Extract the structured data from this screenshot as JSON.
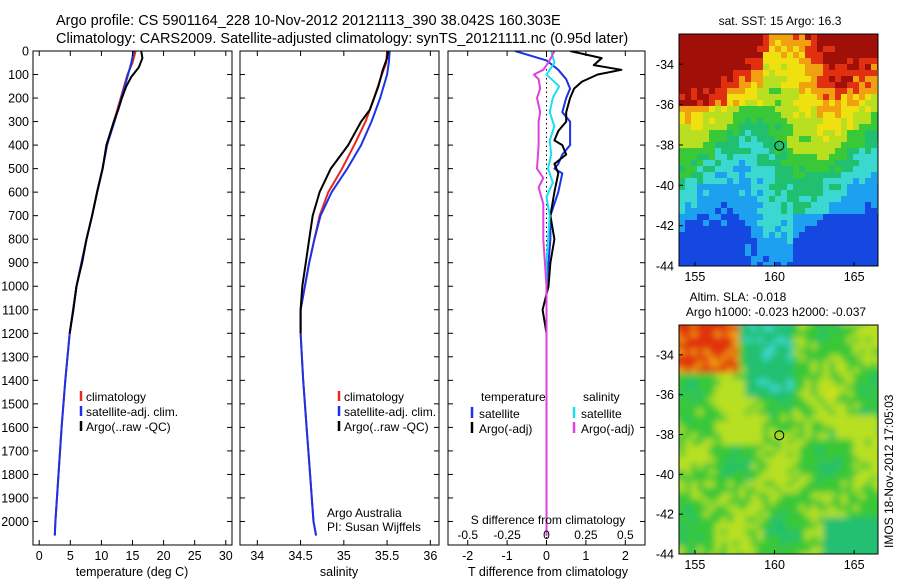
{
  "titles": {
    "line1": "Argo profile: CS 5901164_228 10-Nov-2012 20121113_390 38.042S 160.303E",
    "line2": "Climatology: CARS2009. Satellite-adjusted climatology: synTS_20121111.nc (0.95d later)"
  },
  "credit": {
    "line1": "Argo Australia",
    "line2": "PI: Susan Wijffels"
  },
  "side_label": "IMOS 18-Nov-2012 17:05:03",
  "colors": {
    "climatology": "#e8281e",
    "satellite": "#1a33e6",
    "argo": "#000000",
    "satellite_s": "#18e0f0",
    "argo_s": "#e040e0"
  },
  "chart_data": [
    {
      "type": "line",
      "panel": "temperature",
      "xlabel": "temperature (deg C)",
      "xlim": [
        -1,
        31
      ],
      "xticks": [
        0,
        5,
        10,
        15,
        20,
        25,
        30
      ],
      "ylim": [
        0,
        2100
      ],
      "yreversed": true,
      "yticks": [
        0,
        100,
        200,
        300,
        400,
        500,
        600,
        700,
        800,
        900,
        1000,
        1100,
        1200,
        1300,
        1400,
        1500,
        1600,
        1700,
        1800,
        1900,
        2000
      ],
      "legend": [
        "climatology",
        "satellite-adj. clim.",
        "Argo(..raw -QC)"
      ],
      "series": [
        {
          "name": "climatology",
          "color": "#e8281e",
          "y": [
            0,
            50,
            100,
            200,
            300,
            400,
            500,
            600,
            700,
            800,
            900,
            1000,
            1200,
            1400,
            1600,
            1800,
            2000,
            2060
          ],
          "x": [
            15.5,
            15.0,
            14.2,
            13.1,
            12.0,
            10.9,
            10.2,
            9.3,
            8.5,
            7.6,
            6.8,
            6.0,
            4.9,
            4.2,
            3.6,
            3.1,
            2.6,
            2.5
          ]
        },
        {
          "name": "satellite-adj. clim.",
          "color": "#1a33e6",
          "y": [
            0,
            50,
            100,
            200,
            300,
            400,
            500,
            600,
            700,
            800,
            900,
            1000,
            1200,
            1400,
            1600,
            1800,
            2000,
            2060
          ],
          "x": [
            15.2,
            14.8,
            14.3,
            13.2,
            12.1,
            10.9,
            10.2,
            9.3,
            8.5,
            7.6,
            6.8,
            6.0,
            4.9,
            4.2,
            3.6,
            3.1,
            2.6,
            2.5
          ]
        },
        {
          "name": "Argo(..raw -QC)",
          "color": "#000000",
          "y": [
            0,
            30,
            70,
            110,
            150,
            200,
            250,
            300,
            350,
            400,
            450,
            500,
            600,
            700,
            800,
            900,
            1000,
            1100,
            1200
          ],
          "x": [
            16.4,
            16.6,
            16.0,
            14.8,
            14.0,
            13.3,
            12.7,
            12.0,
            11.4,
            10.8,
            10.5,
            10.2,
            9.3,
            8.5,
            7.6,
            6.9,
            6.0,
            5.5,
            4.9
          ]
        }
      ]
    },
    {
      "type": "line",
      "panel": "salinity",
      "xlabel": "salinity",
      "xlim": [
        33.8,
        36.1
      ],
      "xticks": [
        34,
        34.5,
        35,
        35.5,
        36
      ],
      "xticklabels": [
        "34",
        "34.5",
        "35",
        "35.5",
        "36"
      ],
      "ylim": [
        0,
        2100
      ],
      "yreversed": true,
      "legend": [
        "climatology",
        "satellite-adj. clim.",
        "Argo(..raw -QC)"
      ],
      "series": [
        {
          "name": "climatology",
          "color": "#e8281e",
          "y": [
            0,
            50,
            100,
            200,
            300,
            400,
            500,
            600,
            700,
            800,
            900,
            1000,
            1100,
            1200,
            1400,
            1600,
            1800,
            2000,
            2060
          ],
          "x": [
            35.5,
            35.49,
            35.44,
            35.35,
            35.25,
            35.12,
            34.98,
            34.82,
            34.72,
            34.66,
            34.6,
            34.55,
            34.5,
            34.5,
            34.53,
            34.57,
            34.61,
            34.65,
            34.68
          ]
        },
        {
          "name": "satellite-adj. clim.",
          "color": "#1a33e6",
          "y": [
            0,
            50,
            100,
            200,
            300,
            400,
            500,
            600,
            700,
            800,
            900,
            1000,
            1100,
            1200,
            1400,
            1600,
            1800,
            2000,
            2060
          ],
          "x": [
            35.53,
            35.52,
            35.5,
            35.42,
            35.32,
            35.2,
            35.04,
            34.86,
            34.73,
            34.66,
            34.6,
            34.55,
            34.5,
            34.5,
            34.53,
            34.57,
            34.61,
            34.65,
            34.68
          ]
        },
        {
          "name": "Argo(..raw -QC)",
          "color": "#000000",
          "y": [
            0,
            30,
            80,
            150,
            250,
            300,
            400,
            500,
            600,
            700,
            800,
            900,
            1000,
            1100,
            1200
          ],
          "x": [
            35.51,
            35.5,
            35.45,
            35.4,
            35.3,
            35.2,
            35.05,
            34.85,
            34.72,
            34.64,
            34.6,
            34.56,
            34.52,
            34.5,
            34.5
          ]
        }
      ]
    },
    {
      "type": "line",
      "panel": "difference",
      "xlabel": "T difference from climatology",
      "xlabel_top": "S difference from climatology",
      "xlim": [
        -2.5,
        2.5
      ],
      "xticks": [
        -2,
        -1,
        0,
        1,
        2
      ],
      "sticks": [
        -0.5,
        -0.25,
        0,
        0.25,
        0.5
      ],
      "ylim": [
        0,
        2100
      ],
      "yreversed": true,
      "legend_t_title": "temperature",
      "legend_s_title": "salinity",
      "legend": [
        "satellite",
        "Argo(-adj)",
        "satellite",
        "Argo(-adj)"
      ],
      "series": [
        {
          "name": "T satellite",
          "color": "#1a33e6",
          "y": [
            0,
            40,
            80,
            120,
            160,
            200,
            260,
            300,
            400,
            440,
            480,
            500,
            520,
            600,
            700,
            800,
            900,
            1000,
            1400,
            2060
          ],
          "x": [
            -0.8,
            0.0,
            0.3,
            0.5,
            0.6,
            0.5,
            0.4,
            0.6,
            0.6,
            0.4,
            0.3,
            0.2,
            0.4,
            0.3,
            0.1,
            0.1,
            0.05,
            0.0,
            0.0,
            0.0
          ]
        },
        {
          "name": "T Argo(-adj)",
          "color": "#000000",
          "y": [
            0,
            30,
            60,
            80,
            100,
            130,
            160,
            200,
            260,
            300,
            340,
            380,
            400,
            440,
            480,
            520,
            600,
            700,
            800,
            900,
            1000,
            1100,
            1200,
            1300
          ],
          "x": [
            0.6,
            1.4,
            1.2,
            1.9,
            1.3,
            0.9,
            0.7,
            0.6,
            0.5,
            0.5,
            0.3,
            0.2,
            0.4,
            0.5,
            0.2,
            0.3,
            0.2,
            0.1,
            0.2,
            0.1,
            0.05,
            -0.1,
            0.0,
            0.0
          ]
        },
        {
          "name": "S satellite",
          "color": "#18e0f0",
          "y": [
            0,
            50,
            100,
            150,
            200,
            260,
            320,
            380,
            440,
            500,
            560,
            620,
            700,
            800,
            900,
            1000,
            1200,
            1400,
            2060
          ],
          "x": [
            0.03,
            0.05,
            0.0,
            0.08,
            0.04,
            0.02,
            0.05,
            0.02,
            0.03,
            0.01,
            0.04,
            0.0,
            0.02,
            0.01,
            0.0,
            0.0,
            0.0,
            0.0,
            0.0
          ]
        },
        {
          "name": "S Argo(-adj)",
          "color": "#e040e0",
          "y": [
            0,
            40,
            80,
            100,
            120,
            160,
            200,
            260,
            300,
            400,
            500,
            540,
            580,
            650,
            800,
            900,
            1000,
            1400,
            2060
          ],
          "x": [
            0.05,
            0.02,
            -0.02,
            -0.08,
            -0.05,
            -0.04,
            -0.06,
            -0.04,
            -0.05,
            -0.05,
            -0.06,
            -0.02,
            -0.05,
            -0.02,
            -0.02,
            -0.01,
            0.0,
            0.0,
            0.0
          ]
        }
      ]
    },
    {
      "type": "heatmap",
      "panel": "sst_map",
      "title": "sat. SST: 15  Argo: 16.3",
      "xlim": [
        154,
        166.5
      ],
      "ylim": [
        -44,
        -32.5
      ],
      "xticks": [
        155,
        160,
        165
      ],
      "yticks": [
        -34,
        -36,
        -38,
        -40,
        -42,
        -44
      ],
      "marker": {
        "lon": 160.3,
        "lat": -38.04
      }
    },
    {
      "type": "heatmap",
      "panel": "sla_map",
      "title": "Altim. SLA: -0.018",
      "subtitle": "Argo h1000: -0.023  h2000: -0.037",
      "xlim": [
        154,
        166.5
      ],
      "ylim": [
        -44,
        -32.5
      ],
      "xticks": [
        155,
        160,
        165
      ],
      "yticks": [
        -34,
        -36,
        -38,
        -40,
        -42,
        -44
      ],
      "marker": {
        "lon": 160.3,
        "lat": -38.04
      }
    }
  ]
}
